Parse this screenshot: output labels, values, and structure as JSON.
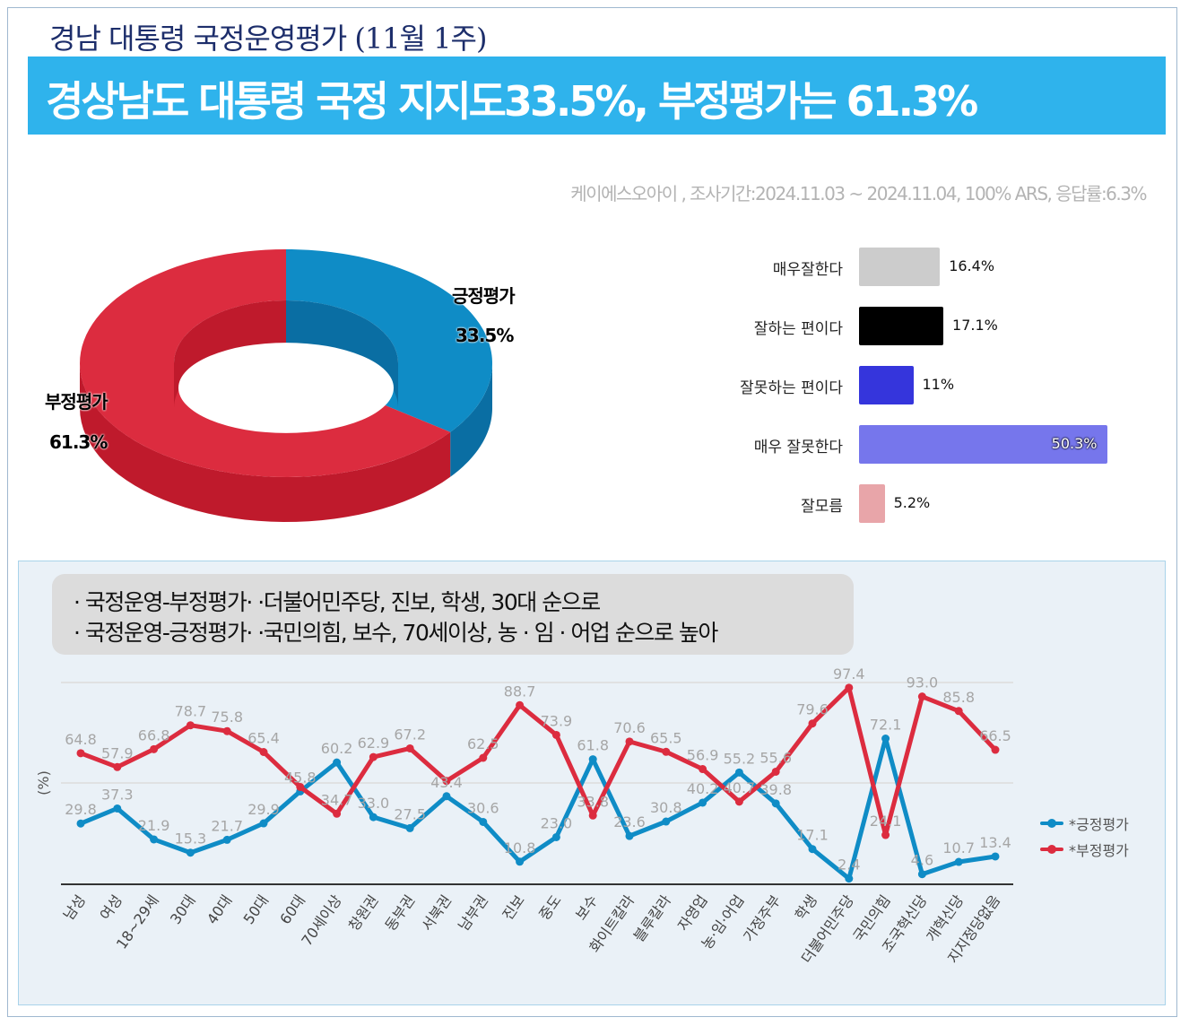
{
  "header": {
    "top_title": "경남 대통령 국정운영평가 (11월 1주)",
    "banner_title": "경상남도 대통령 국정 지지도33.5%, 부정평가는 61.3%",
    "source": "케이에스오아이 , 조사기간:2024.11.03 ~ 2024.11.04, 100% ARS, 응답률:6.3%"
  },
  "colors": {
    "banner": "#2fb3ec",
    "positive": "#0f8cc6",
    "negative": "#dc2c3f"
  },
  "callout": {
    "line1": "· 국정운영-부정평가· ·더불어민주당, 진보, 학생, 30대 순으로",
    "line2": "· 국정운영-긍정평가· ·국민의힘, 보수, 70세이상, 농 · 임 · 어업 순으로 높아"
  },
  "chart_data": [
    {
      "type": "pie",
      "style": "3d-donut",
      "slices": [
        {
          "label": "긍정평가",
          "value": 33.5,
          "display": "33.5%",
          "color": "#0f8cc6"
        },
        {
          "label": "부정평가",
          "value": 61.3,
          "display": "61.3%",
          "color": "#dc2c3f"
        }
      ]
    },
    {
      "type": "bar",
      "orientation": "horizontal",
      "categories": [
        "매우잘한다",
        "잘하는 편이다",
        "잘못하는 편이다",
        "매우 잘못한다",
        "잘모름"
      ],
      "values": [
        16.4,
        17.1,
        11,
        50.3,
        5.2
      ],
      "labels": [
        "16.4%",
        "17.1%",
        "11%",
        "50.3%",
        "5.2%"
      ],
      "colors": [
        "#cccccc",
        "#000000",
        "#3535dc",
        "#7676ec",
        "#e8a5a9"
      ]
    },
    {
      "type": "line",
      "ylabel": "(%)",
      "ylim": [
        0,
        100
      ],
      "grid": true,
      "legend": "right",
      "categories": [
        "남성",
        "여성",
        "18~29세",
        "30대",
        "40대",
        "50대",
        "60대",
        "70세이상",
        "창원권",
        "동부권",
        "서북권",
        "남부권",
        "진보",
        "중도",
        "보수",
        "화이트칼라",
        "블루칼라",
        "자영업",
        "농·임·어업",
        "가정주부",
        "학생",
        "더불어민주당",
        "국민의힘",
        "조국혁신당",
        "개혁신당",
        "지지정당없음"
      ],
      "series": [
        {
          "name": "*긍정평가",
          "color": "#0f8cc6",
          "values": [
            29.8,
            37.3,
            21.9,
            15.3,
            21.7,
            29.9,
            45.8,
            60.2,
            33.0,
            27.5,
            43.4,
            30.6,
            10.8,
            23.0,
            61.8,
            23.6,
            30.8,
            40.2,
            55.2,
            39.8,
            17.1,
            2.4,
            72.1,
            4.6,
            10.7,
            13.4
          ],
          "labeled": [
            true,
            true,
            true,
            true,
            true,
            true,
            true,
            true,
            true,
            true,
            true,
            true,
            true,
            true,
            true,
            true,
            true,
            true,
            true,
            true,
            true,
            true,
            true,
            true,
            true,
            true
          ]
        },
        {
          "name": "*부정평가",
          "color": "#dc2c3f",
          "values": [
            64.8,
            57.9,
            66.8,
            78.7,
            75.8,
            65.4,
            48,
            34.7,
            62.9,
            67.2,
            51,
            62.5,
            88.7,
            73.9,
            33.8,
            70.6,
            65.5,
            56.9,
            40.7,
            55.6,
            79.6,
            97.4,
            24.1,
            93.0,
            85.8,
            66.5
          ],
          "labeled": [
            true,
            true,
            true,
            true,
            true,
            true,
            false,
            true,
            true,
            true,
            false,
            true,
            true,
            true,
            true,
            true,
            true,
            true,
            true,
            true,
            true,
            true,
            true,
            true,
            true,
            true
          ]
        }
      ]
    }
  ]
}
